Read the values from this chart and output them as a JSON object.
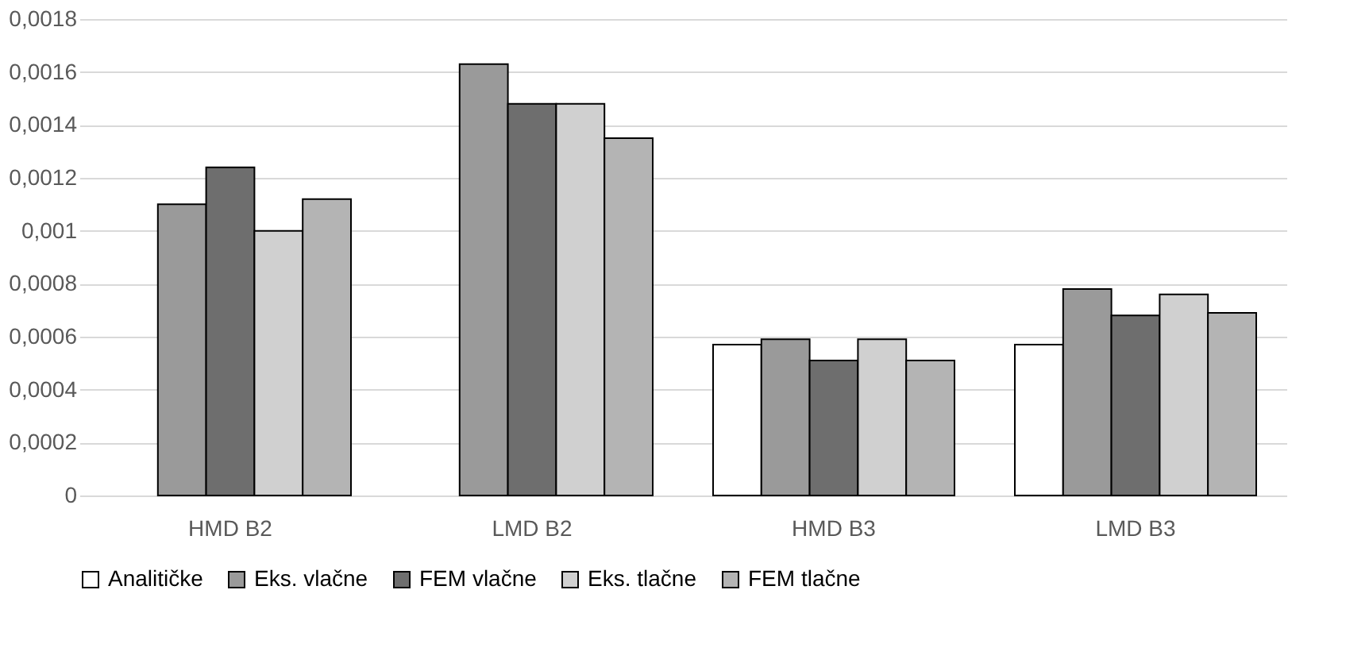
{
  "chart_data": {
    "type": "bar",
    "categories": [
      "HMD B2",
      "LMD B2",
      "HMD B3",
      "LMD B3"
    ],
    "series": [
      {
        "name": "Analitičke",
        "color": "#ffffff",
        "values": [
          null,
          null,
          0.00057,
          0.00057
        ]
      },
      {
        "name": "Eks. vlačne",
        "color": "#9a9a9a",
        "values": [
          0.0011,
          0.00163,
          0.00059,
          0.00078
        ]
      },
      {
        "name": "FEM vlačne",
        "color": "#6e6e6e",
        "values": [
          0.00124,
          0.00148,
          0.00051,
          0.00068
        ]
      },
      {
        "name": "Eks. tlačne",
        "color": "#d0d0d0",
        "values": [
          0.001,
          0.00148,
          0.00059,
          0.00076
        ]
      },
      {
        "name": "FEM tlačne",
        "color": "#b4b4b4",
        "values": [
          0.00112,
          0.00135,
          0.00051,
          0.00069
        ]
      }
    ],
    "ylim": [
      0,
      0.0018
    ],
    "yticks": [
      {
        "value": 0,
        "label": "0"
      },
      {
        "value": 0.0002,
        "label": "0,0002"
      },
      {
        "value": 0.0004,
        "label": "0,0004"
      },
      {
        "value": 0.0006,
        "label": "0,0006"
      },
      {
        "value": 0.0008,
        "label": "0,0008"
      },
      {
        "value": 0.001,
        "label": "0,001"
      },
      {
        "value": 0.0012,
        "label": "0,0012"
      },
      {
        "value": 0.0014,
        "label": "0,0014"
      },
      {
        "value": 0.0016,
        "label": "0,0016"
      },
      {
        "value": 0.0018,
        "label": "0,0018"
      }
    ],
    "grid": "y",
    "legend": "bottom"
  }
}
